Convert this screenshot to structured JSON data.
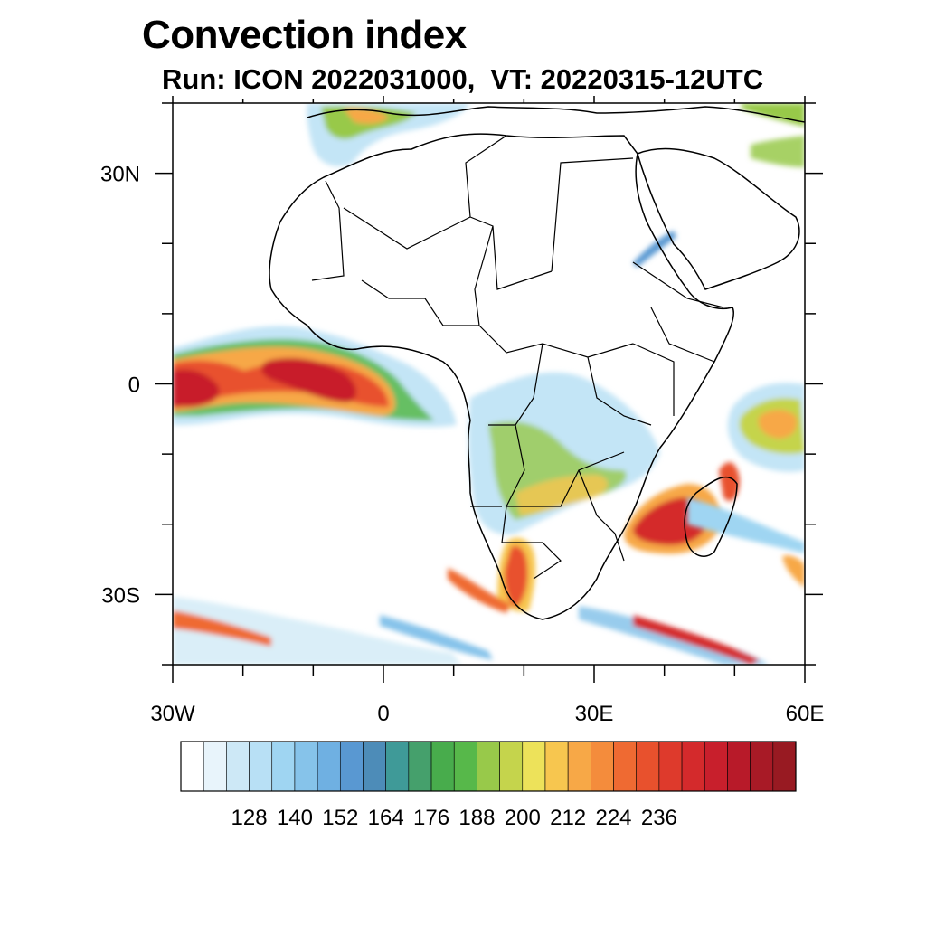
{
  "title": "Convection index",
  "subtitle": "Run: ICON 2022031000,  VT: 20220315-12UTC",
  "axes": {
    "lon_ticks": [
      {
        "value": -30,
        "label": "30W"
      },
      {
        "value": 0,
        "label": "0"
      },
      {
        "value": 30,
        "label": "30E"
      },
      {
        "value": 60,
        "label": "60E"
      }
    ],
    "lat_ticks": [
      {
        "value": 30,
        "label": "30N"
      },
      {
        "value": 0,
        "label": "0"
      },
      {
        "value": -30,
        "label": "30S"
      }
    ],
    "lon_range": [
      -30,
      60
    ],
    "lat_range": [
      -40,
      40
    ]
  },
  "colorbar": {
    "colors": [
      "#ffffff",
      "#e8f4fb",
      "#cde8f6",
      "#b8e0f5",
      "#9fd5f2",
      "#86c3ea",
      "#6fb0e2",
      "#5998d2",
      "#4d8cb8",
      "#3f9a98",
      "#45a06c",
      "#48ac4c",
      "#57b84a",
      "#98c94a",
      "#c5d44c",
      "#ede25a",
      "#f7c64f",
      "#f7a847",
      "#f48c3c",
      "#ef6a32",
      "#e8512d",
      "#de3a2c",
      "#d42a2c",
      "#c81f2c",
      "#b81a29",
      "#a81a26",
      "#981a22"
    ],
    "labels": [
      "128",
      "140",
      "152",
      "164",
      "176",
      "188",
      "200",
      "212",
      "224",
      "236"
    ]
  }
}
